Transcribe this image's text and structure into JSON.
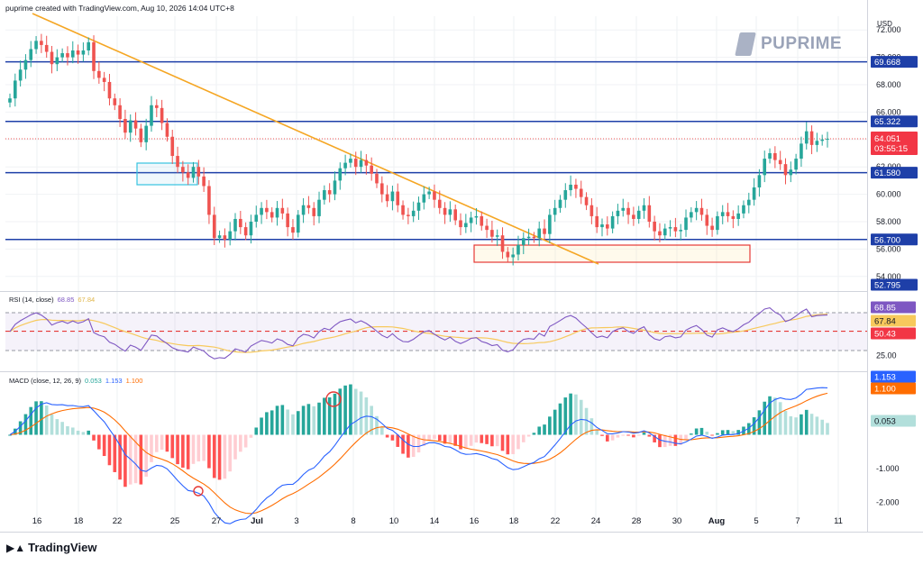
{
  "header": {
    "text": "puprime created with TradingView.com, Aug 10, 2026 14:04 UTC+8"
  },
  "watermark": {
    "text": "PUPRIME",
    "icon": "puprime-logo-icon"
  },
  "footer": {
    "brand": "TradingView",
    "icon": "tradingview-logo-icon"
  },
  "currency": "USD",
  "colors": {
    "up": "#26a69a",
    "down": "#ef5350",
    "hline": "#1e3fa8",
    "trendline": "#f5a623",
    "rsi": "#7e57c2",
    "rsi_ma": "#f7c95c",
    "macd": "#2962ff",
    "signal": "#ff6d00",
    "price_badge": "#f23645",
    "level_badge": "#1e3fa8"
  },
  "chart_data": [
    {
      "type": "candlestick",
      "symbol": "Crude Oil",
      "y_ticks": [
        "72.000",
        "68.000",
        "60.000",
        "58.000",
        "56.000",
        "54.000"
      ],
      "y_ticks_partial": [
        "70.000",
        "66.000",
        "62.000"
      ],
      "ylim": [
        53,
        73
      ],
      "x_labels": [
        "16",
        "18",
        "22",
        "25",
        "27",
        "Jul",
        "3",
        "8",
        "10",
        "14",
        "16",
        "18",
        "22",
        "24",
        "28",
        "30",
        "Aug",
        "5",
        "7",
        "11"
      ],
      "horizontal_levels": [
        {
          "value": 69.668,
          "label": "69.668"
        },
        {
          "value": 65.322,
          "label": "65.322"
        },
        {
          "value": 61.58,
          "label": "61.580"
        },
        {
          "value": 56.7,
          "label": "56.700"
        },
        {
          "value": 52.795,
          "label": "52.795"
        }
      ],
      "current_price": {
        "value": 64.051,
        "label": "64.051",
        "countdown": "03:55:15"
      },
      "closes": [
        67.0,
        68.3,
        69.1,
        69.8,
        70.6,
        71.2,
        70.9,
        70.4,
        69.5,
        70.0,
        70.3,
        70.0,
        70.5,
        70.2,
        70.5,
        71.1,
        69.0,
        68.5,
        68.2,
        67.0,
        66.5,
        65.5,
        64.5,
        65.4,
        64.8,
        63.8,
        65.0,
        66.5,
        66.3,
        65.2,
        64.2,
        62.8,
        62.0,
        61.6,
        61.2,
        62.0,
        61.3,
        60.6,
        58.5,
        56.8,
        57.0,
        56.7,
        57.3,
        58.2,
        57.6,
        57.0,
        58.0,
        58.5,
        59.0,
        58.7,
        58.3,
        59.0,
        58.6,
        57.6,
        57.2,
        58.5,
        59.2,
        59.0,
        58.4,
        59.6,
        60.3,
        60.0,
        61.0,
        61.9,
        62.3,
        62.6,
        62.0,
        62.5,
        62.1,
        61.5,
        60.8,
        60.0,
        59.5,
        60.2,
        59.2,
        58.5,
        58.4,
        58.8,
        59.4,
        60.0,
        60.2,
        59.6,
        59.0,
        58.5,
        58.9,
        58.1,
        57.6,
        57.9,
        58.3,
        58.4,
        57.7,
        57.4,
        56.9,
        57.0,
        55.8,
        55.4,
        55.6,
        56.3,
        56.8,
        56.9,
        56.8,
        57.5,
        57.1,
        58.5,
        59.0,
        59.6,
        60.3,
        60.7,
        60.4,
        59.8,
        59.2,
        58.4,
        57.6,
        57.8,
        57.5,
        58.4,
        58.8,
        59.0,
        58.5,
        58.2,
        58.8,
        59.2,
        58.0,
        57.3,
        57.0,
        57.5,
        57.6,
        57.3,
        57.4,
        58.3,
        58.7,
        59.0,
        58.5,
        57.7,
        57.4,
        58.4,
        58.7,
        58.4,
        58.2,
        58.6,
        59.2,
        59.6,
        60.5,
        61.4,
        62.6,
        63.0,
        62.5,
        62.2,
        61.4,
        61.8,
        62.6,
        63.7,
        64.6,
        63.6,
        63.9,
        64.0,
        64.051
      ],
      "rsi": {
        "label": "RSI (14, close)",
        "value": "68.85",
        "ma_value": "67.84",
        "ticks": [
          "75.00",
          "50.43",
          "25.00"
        ],
        "band": [
          30,
          70
        ],
        "midline": 50.43
      },
      "macd": {
        "label": "MACD (close, 12, 26, 9)",
        "histogram_value": "0.053",
        "macd_value": "1.153",
        "signal_value": "1.100",
        "ticks": [
          "-1.000",
          "-2.000"
        ]
      }
    }
  ]
}
